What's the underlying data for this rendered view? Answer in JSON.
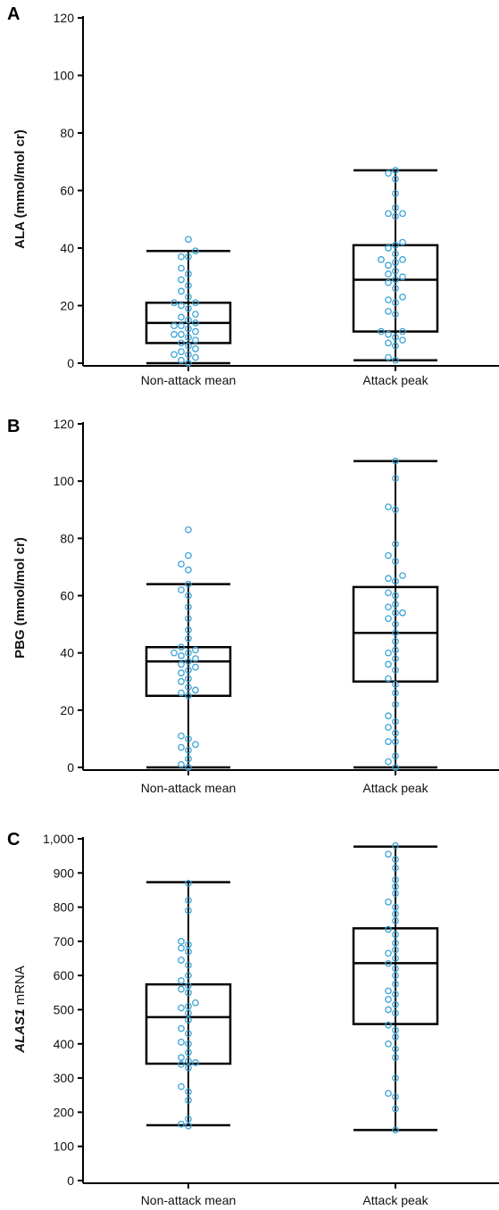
{
  "colors": {
    "point": "#3aa3d6",
    "box": "#000000",
    "axis": "#000000"
  },
  "chart_data": [
    {
      "type": "box",
      "panel": "A",
      "ylabel": "ALA (mmol/mol cr)",
      "ylim": [
        0,
        120
      ],
      "yticks": [
        "0",
        "20",
        "40",
        "60",
        "80",
        "100",
        "120"
      ],
      "categories": [
        "Non-attack mean",
        "Attack peak"
      ],
      "boxes": [
        {
          "min": 0,
          "q1": 7,
          "median": 14,
          "q3": 21,
          "max": 39
        },
        {
          "min": 1,
          "q1": 11,
          "median": 29,
          "q3": 41,
          "max": 67
        }
      ],
      "points": [
        [
          0,
          1,
          2,
          3,
          3,
          4,
          5,
          6,
          7,
          8,
          9,
          10,
          10,
          11,
          12,
          13,
          13,
          14,
          15,
          16,
          17,
          19,
          20,
          21,
          21,
          23,
          25,
          27,
          29,
          31,
          33,
          37,
          37,
          39,
          43
        ],
        [
          1,
          2,
          6,
          7,
          8,
          9,
          10,
          11,
          11,
          17,
          18,
          21,
          22,
          23,
          26,
          28,
          29,
          30,
          31,
          32,
          34,
          35,
          36,
          36,
          38,
          40,
          41,
          42,
          51,
          52,
          52,
          54,
          59,
          64,
          66,
          67
        ]
      ]
    },
    {
      "type": "box",
      "panel": "B",
      "ylabel": "PBG (mmol/mol cr)",
      "ylim": [
        0,
        120
      ],
      "yticks": [
        "0",
        "20",
        "40",
        "60",
        "80",
        "100",
        "120"
      ],
      "categories": [
        "Non-attack mean",
        "Attack peak"
      ],
      "boxes": [
        {
          "min": 0,
          "q1": 25,
          "median": 37,
          "q3": 42,
          "max": 64
        },
        {
          "min": 0,
          "q1": 30,
          "median": 47,
          "q3": 63,
          "max": 107
        }
      ],
      "points": [
        [
          0,
          1,
          3,
          6,
          7,
          8,
          10,
          11,
          25,
          26,
          27,
          28,
          30,
          31,
          33,
          34,
          35,
          36,
          37,
          38,
          39,
          40,
          40,
          41,
          42,
          45,
          48,
          52,
          56,
          60,
          62,
          64,
          69,
          71,
          74,
          83
        ],
        [
          0,
          2,
          4,
          9,
          9,
          12,
          14,
          16,
          18,
          22,
          26,
          29,
          31,
          34,
          36,
          38,
          40,
          41,
          44,
          47,
          50,
          52,
          54,
          54,
          56,
          57,
          60,
          61,
          65,
          66,
          67,
          72,
          74,
          78,
          90,
          91,
          101,
          107
        ]
      ]
    },
    {
      "type": "box",
      "panel": "C",
      "ylabel_italic": "ALAS1",
      "ylabel_rest": " mRNA",
      "ylim": [
        0,
        1000
      ],
      "yticks": [
        "0",
        "100",
        "200",
        "300",
        "400",
        "500",
        "600",
        "700",
        "800",
        "900",
        "1,000"
      ],
      "categories": [
        "Non-attack mean",
        "Attack peak"
      ],
      "boxes": [
        {
          "min": 162,
          "q1": 342,
          "median": 478,
          "q3": 574,
          "max": 873
        },
        {
          "min": 148,
          "q1": 458,
          "median": 636,
          "q3": 738,
          "max": 977
        }
      ],
      "points": [
        [
          160,
          165,
          180,
          235,
          260,
          275,
          330,
          340,
          345,
          350,
          360,
          375,
          400,
          405,
          430,
          445,
          470,
          490,
          505,
          510,
          520,
          550,
          560,
          570,
          585,
          600,
          630,
          645,
          670,
          680,
          690,
          700,
          790,
          820,
          870
        ],
        [
          148,
          210,
          245,
          255,
          300,
          360,
          385,
          400,
          420,
          440,
          455,
          490,
          500,
          515,
          530,
          545,
          555,
          575,
          600,
          620,
          635,
          650,
          665,
          675,
          695,
          720,
          735,
          760,
          780,
          800,
          815,
          840,
          860,
          880,
          915,
          940,
          955,
          980
        ]
      ]
    }
  ]
}
